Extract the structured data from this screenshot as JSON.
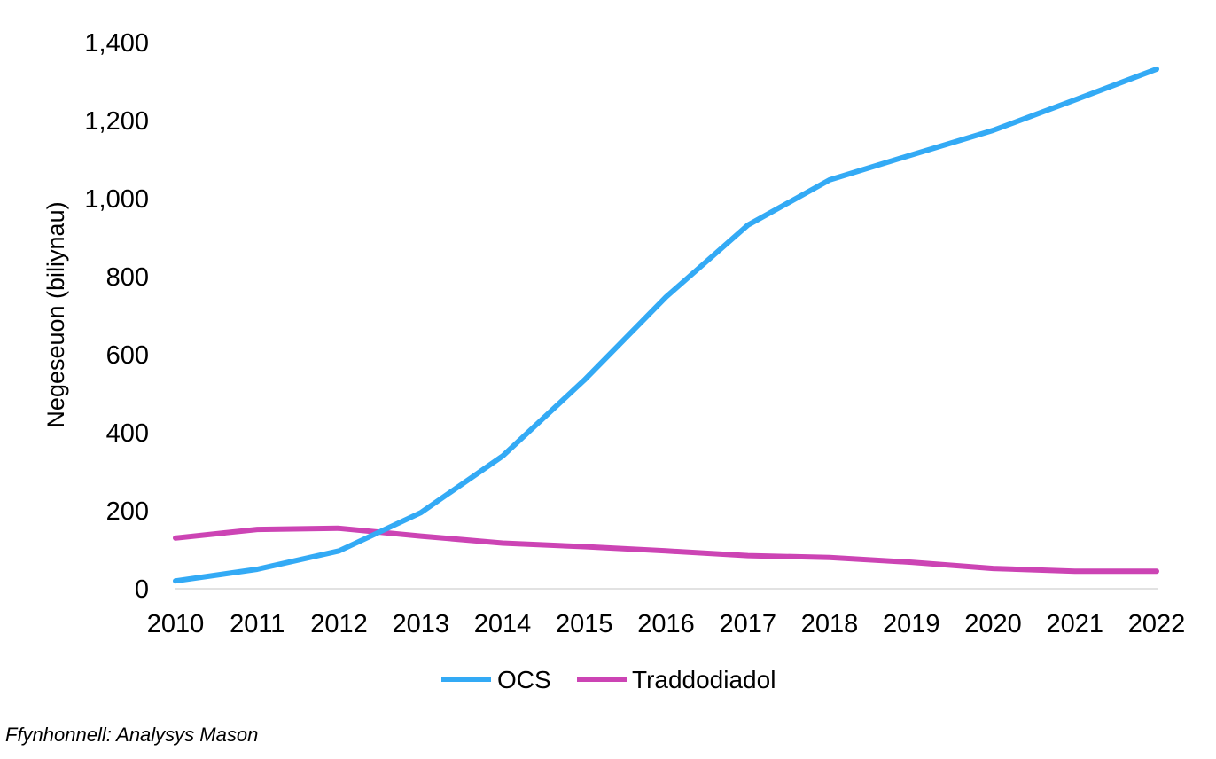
{
  "chart_data": {
    "type": "line",
    "title": "",
    "xlabel": "",
    "ylabel": "Negeseuon (biliynau)",
    "x": [
      "2010",
      "2011",
      "2012",
      "2013",
      "2014",
      "2015",
      "2016",
      "2017",
      "2018",
      "2019",
      "2020",
      "2021",
      "2022"
    ],
    "ylim": [
      0,
      1400
    ],
    "yticks": [
      "0",
      "200",
      "400",
      "600",
      "800",
      "1,000",
      "1,200",
      "1,400"
    ],
    "ytick_values": [
      0,
      200,
      400,
      600,
      800,
      1000,
      1200,
      1400
    ],
    "grid": false,
    "legend_position": "bottom",
    "series": [
      {
        "name": "OCS",
        "color": "#33AAF5",
        "values": [
          20,
          50,
          97,
          195,
          340,
          535,
          748,
          932,
          1048,
          1112,
          1175,
          1253,
          1332
        ]
      },
      {
        "name": "Traddodiadol",
        "color": "#CC44B4",
        "values": [
          130,
          152,
          155,
          135,
          117,
          108,
          97,
          85,
          80,
          68,
          52,
          45,
          45
        ]
      }
    ]
  },
  "source_note": "Ffynhonnell: Analysys Mason"
}
